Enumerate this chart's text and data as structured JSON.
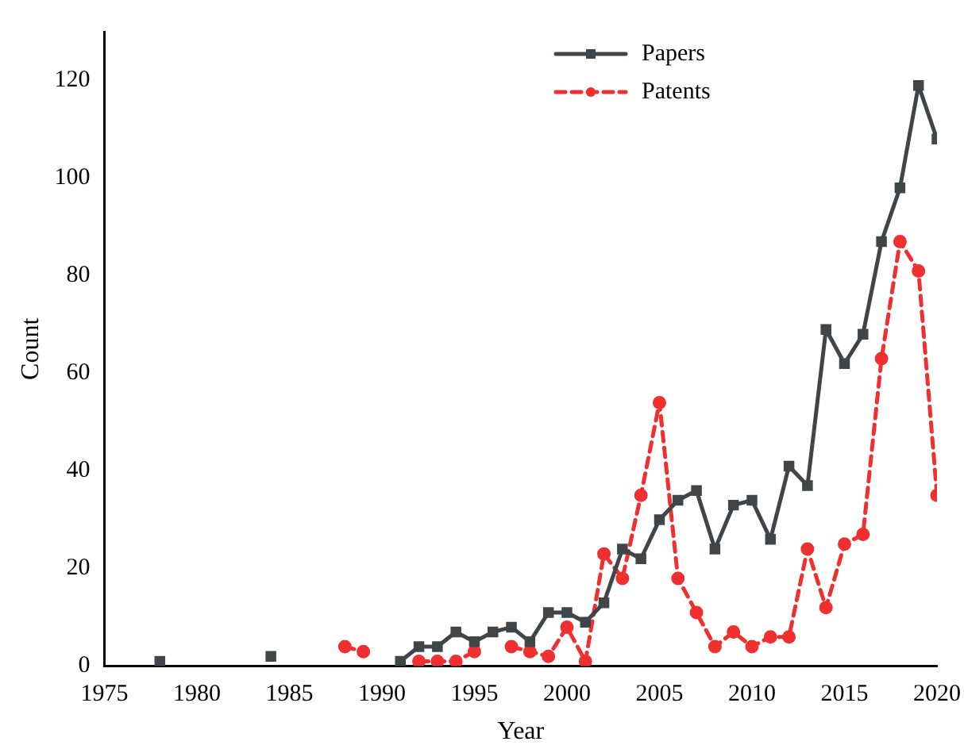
{
  "chart_data": {
    "type": "line",
    "xlabel": "Year",
    "ylabel": "Count",
    "xlim": [
      1975,
      2020
    ],
    "xticks": [
      1975,
      1980,
      1985,
      1990,
      1995,
      2000,
      2005,
      2010,
      2015,
      2020
    ],
    "ylim": [
      0,
      130
    ],
    "yticks": [
      0,
      20,
      40,
      60,
      80,
      100,
      120
    ],
    "legend": "top right",
    "grid": false,
    "x": [
      1978,
      1979,
      1980,
      1981,
      1982,
      1983,
      1984,
      1985,
      1986,
      1987,
      1988,
      1989,
      1990,
      1991,
      1992,
      1993,
      1994,
      1995,
      1996,
      1997,
      1998,
      1999,
      2000,
      2001,
      2002,
      2003,
      2004,
      2005,
      2006,
      2007,
      2008,
      2009,
      2010,
      2011,
      2012,
      2013,
      2014,
      2015,
      2016,
      2017,
      2018,
      2019,
      2020
    ],
    "series": [
      {
        "name": "Papers",
        "color": "#3f4548",
        "marker": "square",
        "line_style": "solid",
        "values": [
          1,
          null,
          null,
          null,
          null,
          null,
          2,
          null,
          null,
          null,
          null,
          null,
          null,
          1,
          4,
          4,
          7,
          5,
          7,
          8,
          5,
          11,
          11,
          9,
          13,
          24,
          22,
          30,
          34,
          36,
          24,
          33,
          34,
          26,
          41,
          37,
          69,
          62,
          68,
          87,
          98,
          119,
          108
        ]
      },
      {
        "name": "Patents",
        "color": "#f03030",
        "marker": "circle",
        "line_style": "dashed",
        "values": [
          null,
          null,
          null,
          null,
          null,
          null,
          null,
          null,
          null,
          null,
          4,
          3,
          null,
          null,
          1,
          1,
          1,
          3,
          null,
          4,
          3,
          2,
          8,
          1,
          23,
          18,
          35,
          54,
          18,
          11,
          4,
          7,
          4,
          6,
          6,
          24,
          12,
          25,
          27,
          63,
          87,
          81,
          35
        ]
      }
    ]
  }
}
